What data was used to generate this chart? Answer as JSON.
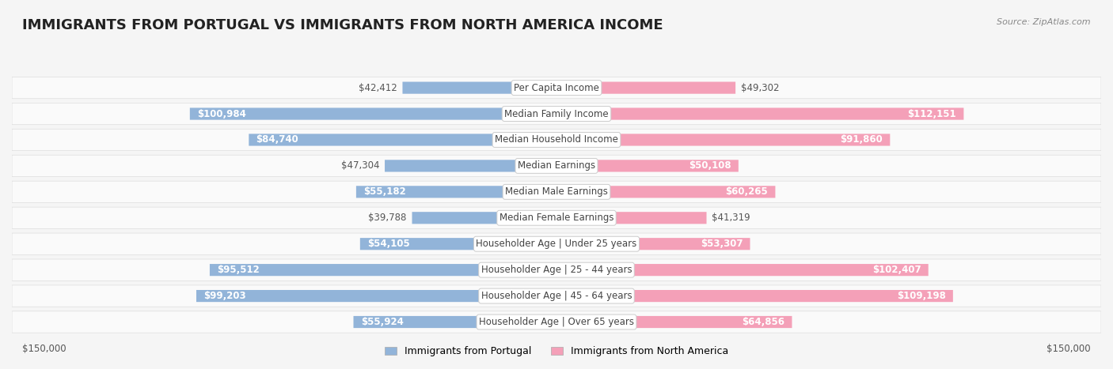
{
  "title": "IMMIGRANTS FROM PORTUGAL VS IMMIGRANTS FROM NORTH AMERICA INCOME",
  "source": "Source: ZipAtlas.com",
  "categories": [
    "Per Capita Income",
    "Median Family Income",
    "Median Household Income",
    "Median Earnings",
    "Median Male Earnings",
    "Median Female Earnings",
    "Householder Age | Under 25 years",
    "Householder Age | 25 - 44 years",
    "Householder Age | 45 - 64 years",
    "Householder Age | Over 65 years"
  ],
  "portugal_values": [
    42412,
    100984,
    84740,
    47304,
    55182,
    39788,
    54105,
    95512,
    99203,
    55924
  ],
  "north_america_values": [
    49302,
    112151,
    91860,
    50108,
    60265,
    41319,
    53307,
    102407,
    109198,
    64856
  ],
  "portugal_labels": [
    "$42,412",
    "$100,984",
    "$84,740",
    "$47,304",
    "$55,182",
    "$39,788",
    "$54,105",
    "$95,512",
    "$99,203",
    "$55,924"
  ],
  "north_america_labels": [
    "$49,302",
    "$112,151",
    "$91,860",
    "$50,108",
    "$60,265",
    "$41,319",
    "$53,307",
    "$102,407",
    "$109,198",
    "$64,856"
  ],
  "portugal_color": "#92b4d9",
  "portugal_color_dark": "#6a9ac4",
  "north_america_color": "#f4a0b8",
  "north_america_color_dark": "#e8759a",
  "max_value": 150000,
  "axis_label": "$150,000",
  "background_color": "#f5f5f5",
  "row_bg_color": "#ffffff",
  "row_alt_color": "#f5f5f5",
  "title_fontsize": 13,
  "label_fontsize": 8.5,
  "category_fontsize": 8.5,
  "legend_label_portugal": "Immigrants from Portugal",
  "legend_label_north_america": "Immigrants from North America"
}
